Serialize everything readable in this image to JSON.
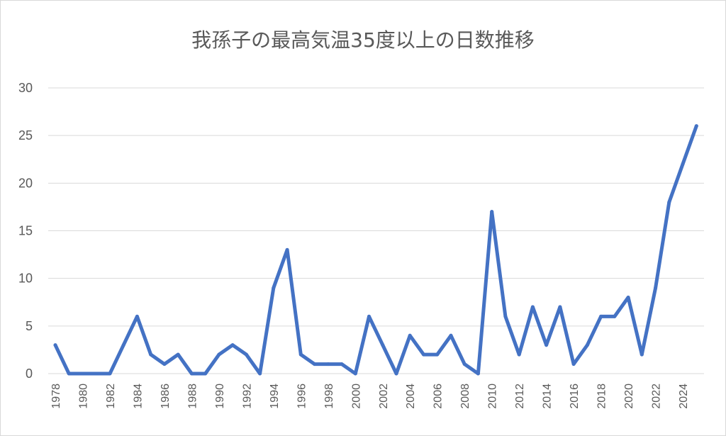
{
  "chart_data": {
    "type": "line",
    "title": "我孫子の最高気温35度以上の日数推移",
    "xlabel": "",
    "ylabel": "",
    "ylim": [
      0,
      30
    ],
    "yticks": [
      0,
      5,
      10,
      15,
      20,
      25,
      30
    ],
    "grid": true,
    "legend": "none",
    "x": [
      1978,
      1979,
      1980,
      1981,
      1982,
      1983,
      1984,
      1985,
      1986,
      1987,
      1988,
      1989,
      1990,
      1991,
      1992,
      1993,
      1994,
      1995,
      1996,
      1997,
      1998,
      1999,
      2000,
      2001,
      2002,
      2003,
      2004,
      2005,
      2006,
      2007,
      2008,
      2009,
      2010,
      2011,
      2012,
      2013,
      2014,
      2015,
      2016,
      2017,
      2018,
      2019,
      2020,
      2021,
      2022,
      2023,
      2024,
      2025
    ],
    "x_tick_labels": [
      "1978",
      "1980",
      "1982",
      "1984",
      "1986",
      "1988",
      "1990",
      "1992",
      "1994",
      "1996",
      "1998",
      "2000",
      "2002",
      "2004",
      "2006",
      "2008",
      "2010",
      "2012",
      "2014",
      "2016",
      "2018",
      "2020",
      "2022",
      "2024"
    ],
    "series": [
      {
        "color": "#4472C4",
        "values": [
          3,
          0,
          0,
          0,
          0,
          3,
          6,
          2,
          1,
          2,
          0,
          0,
          2,
          3,
          2,
          0,
          9,
          13,
          2,
          1,
          1,
          1,
          0,
          6,
          3,
          0,
          4,
          2,
          2,
          4,
          1,
          0,
          17,
          6,
          2,
          7,
          3,
          7,
          1,
          3,
          6,
          6,
          8,
          2,
          9,
          18,
          22,
          26
        ]
      }
    ]
  },
  "colors": {
    "line": "#4472C4",
    "grid": "#d9d9d9",
    "text": "#595959"
  }
}
